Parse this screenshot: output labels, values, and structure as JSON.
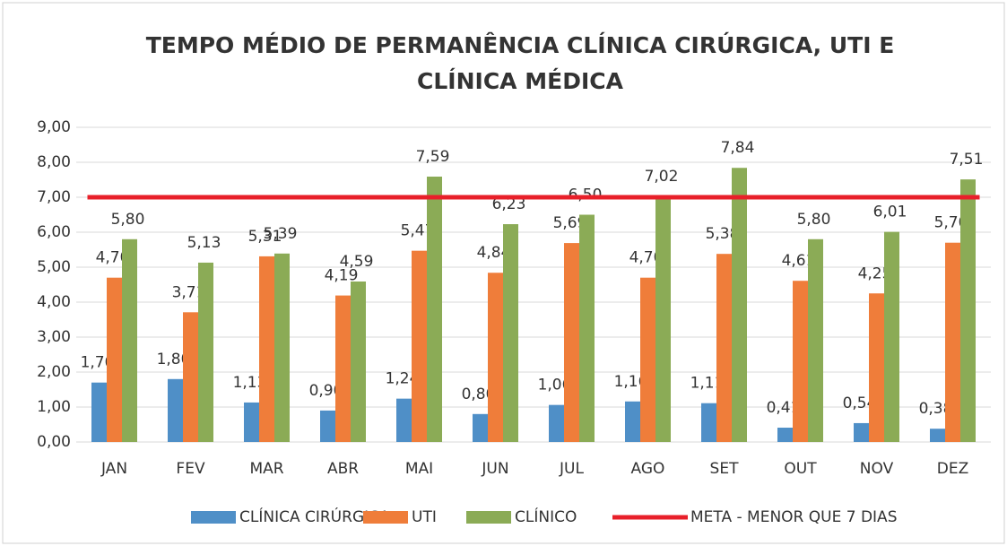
{
  "chart_data": {
    "type": "bar",
    "title": [
      "TEMPO MÉDIO DE PERMANÊNCIA CLÍNICA CIRÚRGICA, UTI E",
      "CLÍNICA MÉDICA"
    ],
    "categories": [
      "JAN",
      "FEV",
      "MAR",
      "ABR",
      "MAI",
      "JUN",
      "JUL",
      "AGO",
      "SET",
      "OUT",
      "NOV",
      "DEZ"
    ],
    "series": [
      {
        "name": "CLÍNICA CIRÚRGICA",
        "color": "#4f8fc7",
        "type": "bar",
        "values": [
          1.7,
          1.8,
          1.13,
          0.9,
          1.24,
          0.8,
          1.06,
          1.16,
          1.11,
          0.41,
          0.54,
          0.38
        ],
        "value_labels": [
          "1,70",
          "1,80",
          "1,13",
          "0,90",
          "1,24",
          "0,80",
          "1,06",
          "1,16",
          "1,11",
          "0,41",
          "0,54",
          "0,38"
        ]
      },
      {
        "name": "UTI",
        "color": "#ef7d3a",
        "type": "bar",
        "values": [
          4.7,
          3.71,
          5.31,
          4.19,
          5.47,
          4.84,
          5.69,
          4.7,
          5.38,
          4.61,
          4.25,
          5.7
        ],
        "value_labels": [
          "4,70",
          "3,71",
          "5,31",
          "4,19",
          "5,47",
          "4,84",
          "5,69",
          "4,70",
          "5,38",
          "4,61",
          "4,25",
          "5,70"
        ]
      },
      {
        "name": "CLÍNICO",
        "color": "#8bab56",
        "type": "bar",
        "values": [
          5.8,
          5.13,
          5.39,
          4.59,
          7.59,
          6.23,
          6.5,
          7.02,
          7.84,
          5.8,
          6.01,
          7.51
        ],
        "value_labels": [
          "5,80",
          "5,13",
          "5,39",
          "4,59",
          "7,59",
          "6,23",
          "6,50",
          "7,02",
          "7,84",
          "5,80",
          "6,01",
          "7,51"
        ]
      },
      {
        "name": "META - MENOR QUE 7 DIAS",
        "color": "#e8202a",
        "type": "line",
        "values": [
          7,
          7,
          7,
          7,
          7,
          7,
          7,
          7,
          7,
          7,
          7,
          7
        ]
      }
    ],
    "ylim": [
      0,
      9
    ],
    "yticks": [
      {
        "value": 0,
        "label": "0,00"
      },
      {
        "value": 1,
        "label": "1,00"
      },
      {
        "value": 2,
        "label": "2,00"
      },
      {
        "value": 3,
        "label": "3,00"
      },
      {
        "value": 4,
        "label": "4,00"
      },
      {
        "value": 5,
        "label": "5,00"
      },
      {
        "value": 6,
        "label": "6,00"
      },
      {
        "value": 7,
        "label": "7,00"
      },
      {
        "value": 8,
        "label": "8,00"
      },
      {
        "value": 9,
        "label": "9,00"
      }
    ],
    "grid": true,
    "legend": "bottom"
  }
}
